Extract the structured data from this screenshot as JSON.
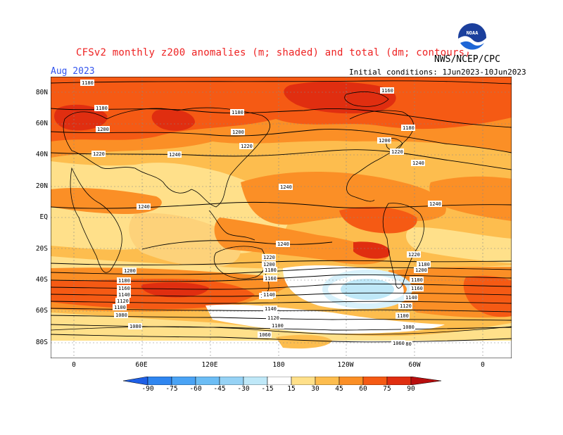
{
  "header": {
    "title": "CFSv2 monthly z200 anomalies (m; shaded) and total (dm; contours)",
    "month": "Aug 2023",
    "initial_conditions": "Initial conditions: 1Jun2023-10Jun2023",
    "agency": "NWS/NCEP/CPC",
    "logo_text": "NOAA"
  },
  "map": {
    "lat_labels": [
      "80N",
      "60N",
      "40N",
      "20N",
      "EQ",
      "20S",
      "40S",
      "60S",
      "80S"
    ],
    "lon_labels": [
      "0",
      "60E",
      "120E",
      "180",
      "120W",
      "60W",
      "0"
    ],
    "contour_labels": [
      "1180",
      "1180",
      "1180",
      "1200",
      "1200",
      "1220",
      "1220",
      "1220",
      "1240",
      "1240",
      "1240",
      "1240",
      "1240",
      "1240",
      "1220",
      "1220",
      "1200",
      "1200",
      "1180",
      "1180",
      "1160",
      "1140",
      "1120",
      "1100",
      "1080",
      "1080",
      "1060",
      "1060",
      "1180",
      "1160",
      "1140",
      "1120",
      "1100",
      "1080",
      "1060",
      "1160",
      "1200",
      "1180",
      "1160",
      "1140",
      "1120",
      "1100",
      "1080",
      "1060",
      "1160",
      "1180",
      "1200",
      "1180",
      "1160",
      "1140"
    ]
  },
  "colorbar": {
    "labels": [
      "-90",
      "-75",
      "-60",
      "-45",
      "-30",
      "-15",
      "15",
      "30",
      "45",
      "60",
      "75",
      "90"
    ],
    "colors": [
      "#1e5fe6",
      "#2f86f0",
      "#4aa3f5",
      "#6cbdf5",
      "#96d2f5",
      "#bfe8f8",
      "#ffffff",
      "#ffe08a",
      "#fdbd4e",
      "#fb8f26",
      "#f55a14",
      "#e02e10",
      "#b80e0e"
    ]
  }
}
